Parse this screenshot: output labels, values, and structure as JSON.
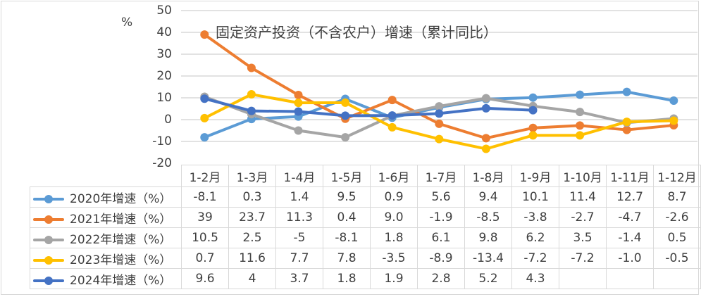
{
  "chart_data": {
    "type": "line",
    "title": "固定资产投资（不含农户）增速（累计同比）",
    "ylabel": "%",
    "xlabel": "",
    "ylim": [
      -20,
      50
    ],
    "yticks": [
      "50",
      "40",
      "30",
      "20",
      "10",
      "0",
      "-10",
      "-20"
    ],
    "grid": true,
    "legend_position": "data-table-left",
    "categories": [
      "1-2月",
      "1-3月",
      "1-4月",
      "1-5月",
      "1-6月",
      "1-7月",
      "1-8月",
      "1-9月",
      "1-10月",
      "1-11月",
      "1-12月"
    ],
    "series": [
      {
        "name": "2020年增速（%）",
        "color": "#5b9bd5",
        "values": [
          -8.1,
          0.3,
          1.4,
          9.5,
          0.9,
          5.6,
          9.4,
          10.1,
          11.4,
          12.7,
          8.7
        ],
        "labels": [
          "-8.1",
          "0.3",
          "1.4",
          "9.5",
          "0.9",
          "5.6",
          "9.4",
          "10.1",
          "11.4",
          "12.7",
          "8.7"
        ]
      },
      {
        "name": "2021年增速（%）",
        "color": "#ed7d31",
        "values": [
          39,
          23.7,
          11.3,
          0.4,
          9.0,
          -1.9,
          -8.5,
          -3.8,
          -2.7,
          -4.7,
          -2.6
        ],
        "labels": [
          "39",
          "23.7",
          "11.3",
          "0.4",
          "9.0",
          "-1.9",
          "-8.5",
          "-3.8",
          "-2.7",
          "-4.7",
          "-2.6"
        ]
      },
      {
        "name": "2022年增速（%）",
        "color": "#a5a5a5",
        "values": [
          10.5,
          2.5,
          -5,
          -8.1,
          1.8,
          6.1,
          9.8,
          6.2,
          3.5,
          -1.4,
          0.5
        ],
        "labels": [
          "10.5",
          "2.5",
          "-5",
          "-8.1",
          "1.8",
          "6.1",
          "9.8",
          "6.2",
          "3.5",
          "-1.4",
          "0.5"
        ]
      },
      {
        "name": "2023年增速（%）",
        "color": "#ffc000",
        "values": [
          0.7,
          11.6,
          7.7,
          7.8,
          -3.5,
          -8.9,
          -13.4,
          -7.2,
          -7.2,
          -1.0,
          -0.5
        ],
        "labels": [
          "0.7",
          "11.6",
          "7.7",
          "7.8",
          "-3.5",
          "-8.9",
          "-13.4",
          "-7.2",
          "-7.2",
          "-1.0",
          "-0.5"
        ]
      },
      {
        "name": "2024年增速（%）",
        "color": "#4472c4",
        "values": [
          9.6,
          4,
          3.7,
          1.8,
          1.9,
          2.8,
          5.2,
          4.3,
          null,
          null,
          null
        ],
        "labels": [
          "9.6",
          "4",
          "3.7",
          "1.8",
          "1.9",
          "2.8",
          "5.2",
          "4.3",
          "",
          "",
          ""
        ]
      }
    ]
  }
}
